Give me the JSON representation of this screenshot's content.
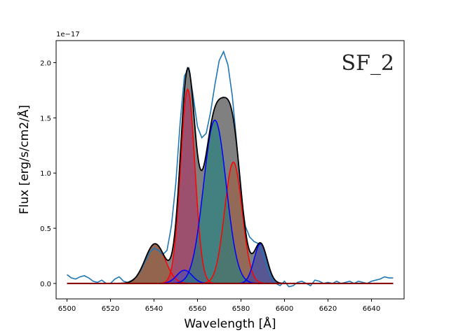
{
  "chart_data": {
    "type": "area",
    "title": "",
    "annotation": "SF_2",
    "xlabel": "Wavelength [Å]",
    "ylabel": "Flux [erg/s/cm2/Å]",
    "y_offset_text": "1e−17",
    "xlim": [
      6495,
      6655
    ],
    "ylim": [
      -0.14,
      2.2
    ],
    "xticks": [
      6500,
      6520,
      6540,
      6560,
      6580,
      6600,
      6620,
      6640
    ],
    "yticks": [
      0.0,
      0.5,
      1.0,
      1.5,
      2.0
    ],
    "ytick_labels": [
      "0.0",
      "0.5",
      "1.0",
      "1.5",
      "2.0"
    ],
    "grid": false,
    "x_range": [
      6500,
      6650
    ],
    "components": [
      {
        "color": "#ff0000",
        "fill": "#a0522d",
        "amplitude": 0.36,
        "center": 6540.5,
        "sigma": 4.6
      },
      {
        "color": "#ff0000",
        "fill": "#b03060",
        "amplitude": 1.76,
        "center": 6555.5,
        "sigma": 3.3
      },
      {
        "color": "#ff0000",
        "fill": "#a05a3c",
        "amplitude": 1.1,
        "center": 6576.5,
        "sigma": 4.0
      },
      {
        "color": "#0000ff",
        "fill": "#4b4bb4",
        "amplitude": 0.12,
        "center": 6554.0,
        "sigma": 3.5
      },
      {
        "color": "#0000ff",
        "fill": "#1a8080",
        "amplitude": 1.48,
        "center": 6568.0,
        "sigma": 5.2
      },
      {
        "color": "#0000ff",
        "fill": "#3c3ca0",
        "amplitude": 0.36,
        "center": 6589.0,
        "sigma": 3.0
      }
    ],
    "total_fill": "#808080",
    "total_line": "#000000",
    "baseline_color": "#8b0000",
    "data_line_color": "#1f77b4",
    "data_points": [
      [
        6500,
        0.08
      ],
      [
        6502,
        0.05
      ],
      [
        6504,
        0.04
      ],
      [
        6506,
        0.06
      ],
      [
        6508,
        0.07
      ],
      [
        6510,
        0.05
      ],
      [
        6512,
        0.02
      ],
      [
        6514,
        0.01
      ],
      [
        6516,
        0.03
      ],
      [
        6518,
        0.0
      ],
      [
        6520,
        0.0
      ],
      [
        6522,
        0.04
      ],
      [
        6524,
        0.06
      ],
      [
        6526,
        0.02
      ],
      [
        6528,
        0.01
      ],
      [
        6530,
        0.03
      ],
      [
        6532,
        0.06
      ],
      [
        6534,
        0.12
      ],
      [
        6536,
        0.2
      ],
      [
        6538,
        0.28
      ],
      [
        6540,
        0.32
      ],
      [
        6542,
        0.3
      ],
      [
        6544,
        0.26
      ],
      [
        6546,
        0.3
      ],
      [
        6548,
        0.52
      ],
      [
        6550,
        0.9
      ],
      [
        6552,
        1.45
      ],
      [
        6554,
        1.88
      ],
      [
        6556,
        1.95
      ],
      [
        6558,
        1.7
      ],
      [
        6560,
        1.42
      ],
      [
        6562,
        1.32
      ],
      [
        6564,
        1.36
      ],
      [
        6566,
        1.55
      ],
      [
        6568,
        1.8
      ],
      [
        6570,
        2.02
      ],
      [
        6572,
        2.1
      ],
      [
        6574,
        1.98
      ],
      [
        6576,
        1.7
      ],
      [
        6578,
        1.28
      ],
      [
        6580,
        0.8
      ],
      [
        6582,
        0.52
      ],
      [
        6584,
        0.42
      ],
      [
        6586,
        0.38
      ],
      [
        6588,
        0.36
      ],
      [
        6590,
        0.28
      ],
      [
        6592,
        0.15
      ],
      [
        6594,
        0.05
      ],
      [
        6596,
        0.0
      ],
      [
        6598,
        -0.02
      ],
      [
        6600,
        0.02
      ],
      [
        6602,
        -0.03
      ],
      [
        6604,
        -0.02
      ],
      [
        6606,
        0.01
      ],
      [
        6608,
        0.02
      ],
      [
        6610,
        0.0
      ],
      [
        6612,
        -0.02
      ],
      [
        6614,
        0.03
      ],
      [
        6616,
        0.02
      ],
      [
        6618,
        0.0
      ],
      [
        6620,
        0.01
      ],
      [
        6622,
        0.0
      ],
      [
        6624,
        0.02
      ],
      [
        6626,
        0.0
      ],
      [
        6628,
        0.01
      ],
      [
        6630,
        0.02
      ],
      [
        6632,
        0.0
      ],
      [
        6634,
        0.02
      ],
      [
        6636,
        0.01
      ],
      [
        6638,
        0.0
      ],
      [
        6640,
        0.02
      ],
      [
        6642,
        0.03
      ],
      [
        6644,
        0.04
      ],
      [
        6646,
        0.06
      ],
      [
        6648,
        0.05
      ],
      [
        6650,
        0.05
      ]
    ]
  }
}
